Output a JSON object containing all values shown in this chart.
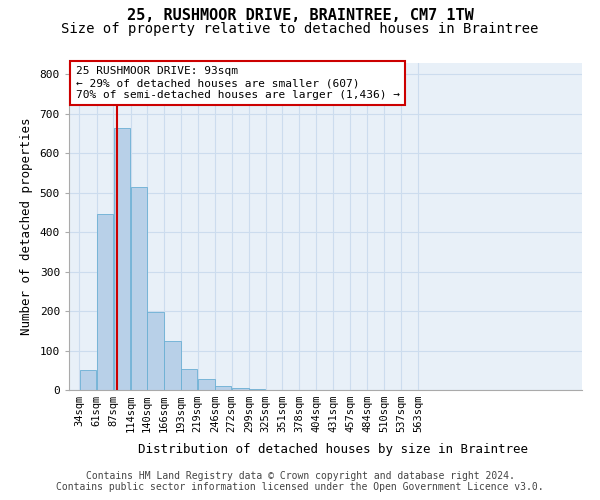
{
  "title": "25, RUSHMOOR DRIVE, BRAINTREE, CM7 1TW",
  "subtitle": "Size of property relative to detached houses in Braintree",
  "xlabel": "Distribution of detached houses by size in Braintree",
  "ylabel": "Number of detached properties",
  "bin_labels": [
    "34sqm",
    "61sqm",
    "87sqm",
    "114sqm",
    "140sqm",
    "166sqm",
    "193sqm",
    "219sqm",
    "246sqm",
    "272sqm",
    "299sqm",
    "325sqm",
    "351sqm",
    "378sqm",
    "404sqm",
    "431sqm",
    "457sqm",
    "484sqm",
    "510sqm",
    "537sqm",
    "563sqm"
  ],
  "bin_edges": [
    34,
    61,
    87,
    114,
    140,
    166,
    193,
    219,
    246,
    272,
    299,
    325,
    351,
    378,
    404,
    431,
    457,
    484,
    510,
    537,
    563
  ],
  "bar_heights": [
    50,
    445,
    665,
    515,
    197,
    125,
    52,
    27,
    10,
    5,
    2,
    1,
    0,
    0,
    0,
    0,
    0,
    0,
    0,
    0
  ],
  "bar_color": "#b8d0e8",
  "bar_edgecolor": "#6aafd4",
  "grid_color": "#ccdcee",
  "background_color": "#e8f0f8",
  "property_line_x": 93,
  "property_line_color": "#cc0000",
  "annotation_line1": "25 RUSHMOOR DRIVE: 93sqm",
  "annotation_line2": "← 29% of detached houses are smaller (607)",
  "annotation_line3": "70% of semi-detached houses are larger (1,436) →",
  "annotation_box_facecolor": "#ffffff",
  "annotation_box_edgecolor": "#cc0000",
  "ylim": [
    0,
    830
  ],
  "yticks": [
    0,
    100,
    200,
    300,
    400,
    500,
    600,
    700,
    800
  ],
  "footer_line1": "Contains HM Land Registry data © Crown copyright and database right 2024.",
  "footer_line2": "Contains public sector information licensed under the Open Government Licence v3.0.",
  "title_fontsize": 11,
  "subtitle_fontsize": 10,
  "ylabel_fontsize": 9,
  "xlabel_fontsize": 9,
  "tick_fontsize": 7.5,
  "annotation_fontsize": 8,
  "footer_fontsize": 7
}
